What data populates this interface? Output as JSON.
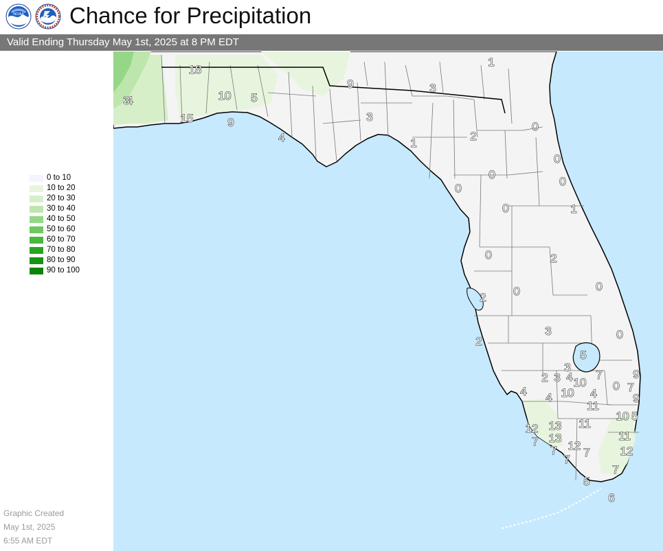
{
  "header": {
    "title": "Chance for Precipitation",
    "logos": [
      "noaa-logo",
      "nws-logo"
    ]
  },
  "valid_time": "Valid Ending Thursday May 1st, 2025 at 8 PM EDT",
  "legend": {
    "items": [
      {
        "label": "0 to 10",
        "color": "#f5f3fb"
      },
      {
        "label": "10 to 20",
        "color": "#e8f5de"
      },
      {
        "label": "20 to 30",
        "color": "#d6efc9"
      },
      {
        "label": "30 to 40",
        "color": "#bde6ad"
      },
      {
        "label": "40 to 50",
        "color": "#95d787"
      },
      {
        "label": "50 to 60",
        "color": "#6fc85d"
      },
      {
        "label": "60 to 70",
        "color": "#4ab83a"
      },
      {
        "label": "70 to 80",
        "color": "#28a520"
      },
      {
        "label": "80 to 90",
        "color": "#139512"
      },
      {
        "label": "90 to 100",
        "color": "#098409"
      }
    ]
  },
  "created": {
    "line1": "Graphic Created",
    "line2": "May 1st, 2025",
    "line3": "6:55 AM EDT"
  },
  "colors": {
    "water": "#c6e9fd",
    "land": "#f4f4f4",
    "county_lines": "#777777",
    "state_lines": "#000000"
  },
  "map_values": [
    "18",
    "1",
    "9",
    "3",
    "3",
    "4",
    "10",
    "5",
    "15",
    "9",
    "4",
    "3",
    "1",
    "2",
    "0",
    "0",
    "0",
    "0",
    "0",
    "1",
    "0",
    "0",
    "2",
    "0",
    "0",
    "2",
    "0",
    "3",
    "2",
    "5",
    "3",
    "2",
    "3",
    "4",
    "10",
    "7",
    "9",
    "0",
    "7",
    "4",
    "4",
    "10",
    "4",
    "9",
    "11",
    "10",
    "5",
    "13",
    "11",
    "12",
    "13",
    "11",
    "7",
    "7",
    "12",
    "7",
    "12",
    "7",
    "7",
    "5",
    "6"
  ]
}
